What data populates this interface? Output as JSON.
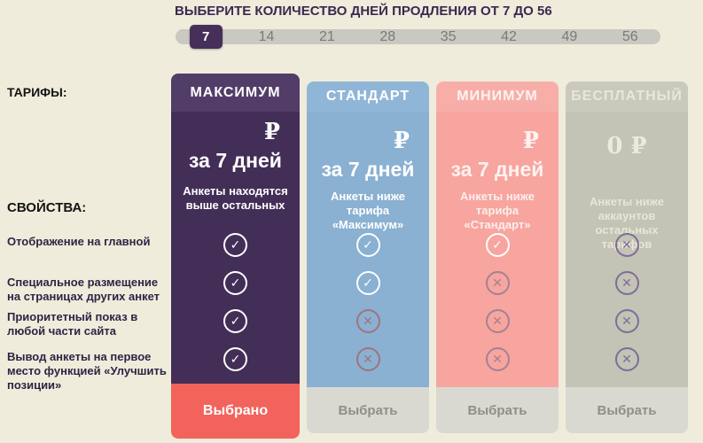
{
  "header": {
    "title": "ВЫБЕРИТЕ КОЛИЧЕСТВО ДНЕЙ ПРОДЛЕНИЯ ОТ 7 ДО 56"
  },
  "day_selector": {
    "days": [
      "7",
      "14",
      "21",
      "28",
      "35",
      "42",
      "49",
      "56"
    ],
    "selected": "7"
  },
  "sidebar": {
    "tariffs_label": "ТАРИФЫ:",
    "properties_label": "СВОЙСТВА:",
    "features": [
      "Отображение на главной",
      "Специальное размещение на страницах других анкет",
      "Приоритетный показ в любой части сайта",
      "Вывод анкеты на первое место функцией «Улучшить позиции»"
    ]
  },
  "icons": {
    "check": "✓",
    "cross": "✕"
  },
  "tariffs": [
    {
      "name": "МАКСИМУМ",
      "price": "₽",
      "period": "за 7 дней",
      "desc": "Анкеты находятся выше остальных",
      "features": [
        "included",
        "included",
        "included",
        "included"
      ],
      "button_label": "Выбрано",
      "selected": true
    },
    {
      "name": "СТАНДАРТ",
      "price": "₽",
      "period": "за 7 дней",
      "desc": "Анкеты ниже тарифа «Максимум»",
      "features": [
        "included",
        "included",
        "excluded",
        "excluded"
      ],
      "button_label": "Выбрать",
      "selected": false
    },
    {
      "name": "МИНИМУМ",
      "price": "₽",
      "period": "за 7 дней",
      "desc": "Анкеты ниже тарифа «Стандарт»",
      "features": [
        "included",
        "excluded",
        "excluded",
        "excluded"
      ],
      "button_label": "Выбрать",
      "selected": false
    },
    {
      "name": "БЕСПЛАТНЫЙ",
      "price": "0 ₽",
      "period": "",
      "desc": "Анкеты ниже аккаунтов остальных тарифов",
      "features": [
        "excluded",
        "excluded",
        "excluded",
        "excluded"
      ],
      "button_label": "Выбрать",
      "selected": false
    }
  ],
  "colors": {
    "page_bg": "#efecdb",
    "selected_day_bg": "#46305a",
    "maximum_body": "#432e57",
    "standard_body": "#8ab0d2",
    "minimum_body": "#f7a59e",
    "free_body": "#c3c3b6",
    "selected_button": "#f2635c",
    "idle_button": "#dad9d1"
  }
}
